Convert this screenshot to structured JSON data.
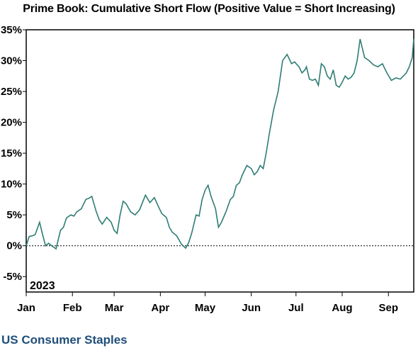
{
  "title": "Prime Book: Cumulative Short Flow (Positive Value = Short Increasing)",
  "footer": "US Consumer Staples",
  "colors": {
    "line": "#2e7d74",
    "frame": "#000000",
    "zero_line": "#000000"
  },
  "chart_data": {
    "type": "line",
    "title": "Prime Book: Cumulative Short Flow (Positive Value = Short Increasing)",
    "year_label": "2023",
    "xlabel": "",
    "ylabel": "",
    "categories": [
      "Jan",
      "Feb",
      "Mar",
      "Apr",
      "May",
      "Jun",
      "Jul",
      "Aug",
      "Sep"
    ],
    "y_ticks": [
      -5,
      0,
      5,
      10,
      15,
      20,
      25,
      30,
      35
    ],
    "y_tick_labels": [
      "-5%",
      "0%",
      "5%",
      "10%",
      "15%",
      "20%",
      "25%",
      "30%",
      "35%"
    ],
    "ylim": [
      -7.5,
      35
    ],
    "x_start": "2023-01-01",
    "x_end": "2023-09-18",
    "grid": false,
    "reference_line": {
      "y": 0,
      "style": "dotted"
    },
    "series": [
      {
        "x": [
          "2023-01-01",
          "2023-01-03",
          "2023-01-05",
          "2023-01-07",
          "2023-01-10",
          "2023-01-12",
          "2023-01-14",
          "2023-01-16",
          "2023-01-18",
          "2023-01-21",
          "2023-01-24",
          "2023-01-26",
          "2023-01-28",
          "2023-01-31",
          "2023-02-02",
          "2023-02-04",
          "2023-02-07",
          "2023-02-10",
          "2023-02-12",
          "2023-02-14",
          "2023-02-17",
          "2023-02-19",
          "2023-02-21",
          "2023-02-24",
          "2023-02-27",
          "2023-03-01",
          "2023-03-03",
          "2023-03-05",
          "2023-03-07",
          "2023-03-09",
          "2023-03-12",
          "2023-03-15",
          "2023-03-18",
          "2023-03-22",
          "2023-03-25",
          "2023-03-28",
          "2023-03-31",
          "2023-04-02",
          "2023-04-05",
          "2023-04-07",
          "2023-04-09",
          "2023-04-12",
          "2023-04-15",
          "2023-04-18",
          "2023-04-20",
          "2023-04-22",
          "2023-04-25",
          "2023-04-27",
          "2023-04-29",
          "2023-05-01",
          "2023-05-03",
          "2023-05-05",
          "2023-05-08",
          "2023-05-10",
          "2023-05-12",
          "2023-05-15",
          "2023-05-18",
          "2023-05-20",
          "2023-05-22",
          "2023-05-24",
          "2023-05-26",
          "2023-05-29",
          "2023-06-01",
          "2023-06-03",
          "2023-06-05",
          "2023-06-07",
          "2023-06-09",
          "2023-06-11",
          "2023-06-13",
          "2023-06-16",
          "2023-06-19",
          "2023-06-22",
          "2023-06-25",
          "2023-06-28",
          "2023-06-30",
          "2023-07-03",
          "2023-07-05",
          "2023-07-07",
          "2023-07-08",
          "2023-07-10",
          "2023-07-12",
          "2023-07-14",
          "2023-07-16",
          "2023-07-18",
          "2023-07-20",
          "2023-07-22",
          "2023-07-24",
          "2023-07-26",
          "2023-07-28",
          "2023-07-30",
          "2023-08-01",
          "2023-08-03",
          "2023-08-05",
          "2023-08-07",
          "2023-08-09",
          "2023-08-11",
          "2023-08-13",
          "2023-08-16",
          "2023-08-19",
          "2023-08-22",
          "2023-08-25",
          "2023-08-28",
          "2023-08-31",
          "2023-09-03",
          "2023-09-06",
          "2023-09-09",
          "2023-09-11",
          "2023-09-13",
          "2023-09-15",
          "2023-09-17",
          "2023-09-18"
        ],
        "values": [
          0.0,
          1.5,
          1.6,
          1.8,
          3.8,
          1.8,
          0.0,
          0.4,
          0.0,
          -0.5,
          2.5,
          3.0,
          4.5,
          5.0,
          4.8,
          5.5,
          6.0,
          7.5,
          7.7,
          8.0,
          5.5,
          4.2,
          3.5,
          4.6,
          3.8,
          2.5,
          2.0,
          5.0,
          7.2,
          6.8,
          5.5,
          5.0,
          5.8,
          8.2,
          7.0,
          7.8,
          6.2,
          5.2,
          4.6,
          3.0,
          2.2,
          1.6,
          0.3,
          -0.4,
          0.5,
          2.0,
          5.0,
          4.8,
          7.5,
          9.0,
          9.8,
          8.0,
          6.0,
          3.0,
          3.8,
          5.5,
          7.5,
          8.0,
          9.8,
          10.2,
          11.5,
          13.0,
          12.5,
          11.5,
          12.0,
          13.0,
          12.5,
          15.0,
          18.0,
          22.0,
          25.0,
          30.0,
          31.0,
          29.5,
          29.8,
          29.0,
          28.0,
          28.5,
          29.0,
          27.0,
          26.8,
          27.0,
          26.0,
          29.5,
          29.0,
          27.5,
          27.0,
          28.5,
          26.0,
          25.7,
          26.5,
          27.5,
          27.0,
          27.3,
          28.0,
          30.0,
          33.5,
          30.5,
          30.0,
          29.3,
          29.0,
          29.5,
          28.0,
          26.8,
          27.2,
          27.0,
          27.5,
          28.0,
          29.0,
          30.5,
          33.5
        ]
      }
    ]
  }
}
